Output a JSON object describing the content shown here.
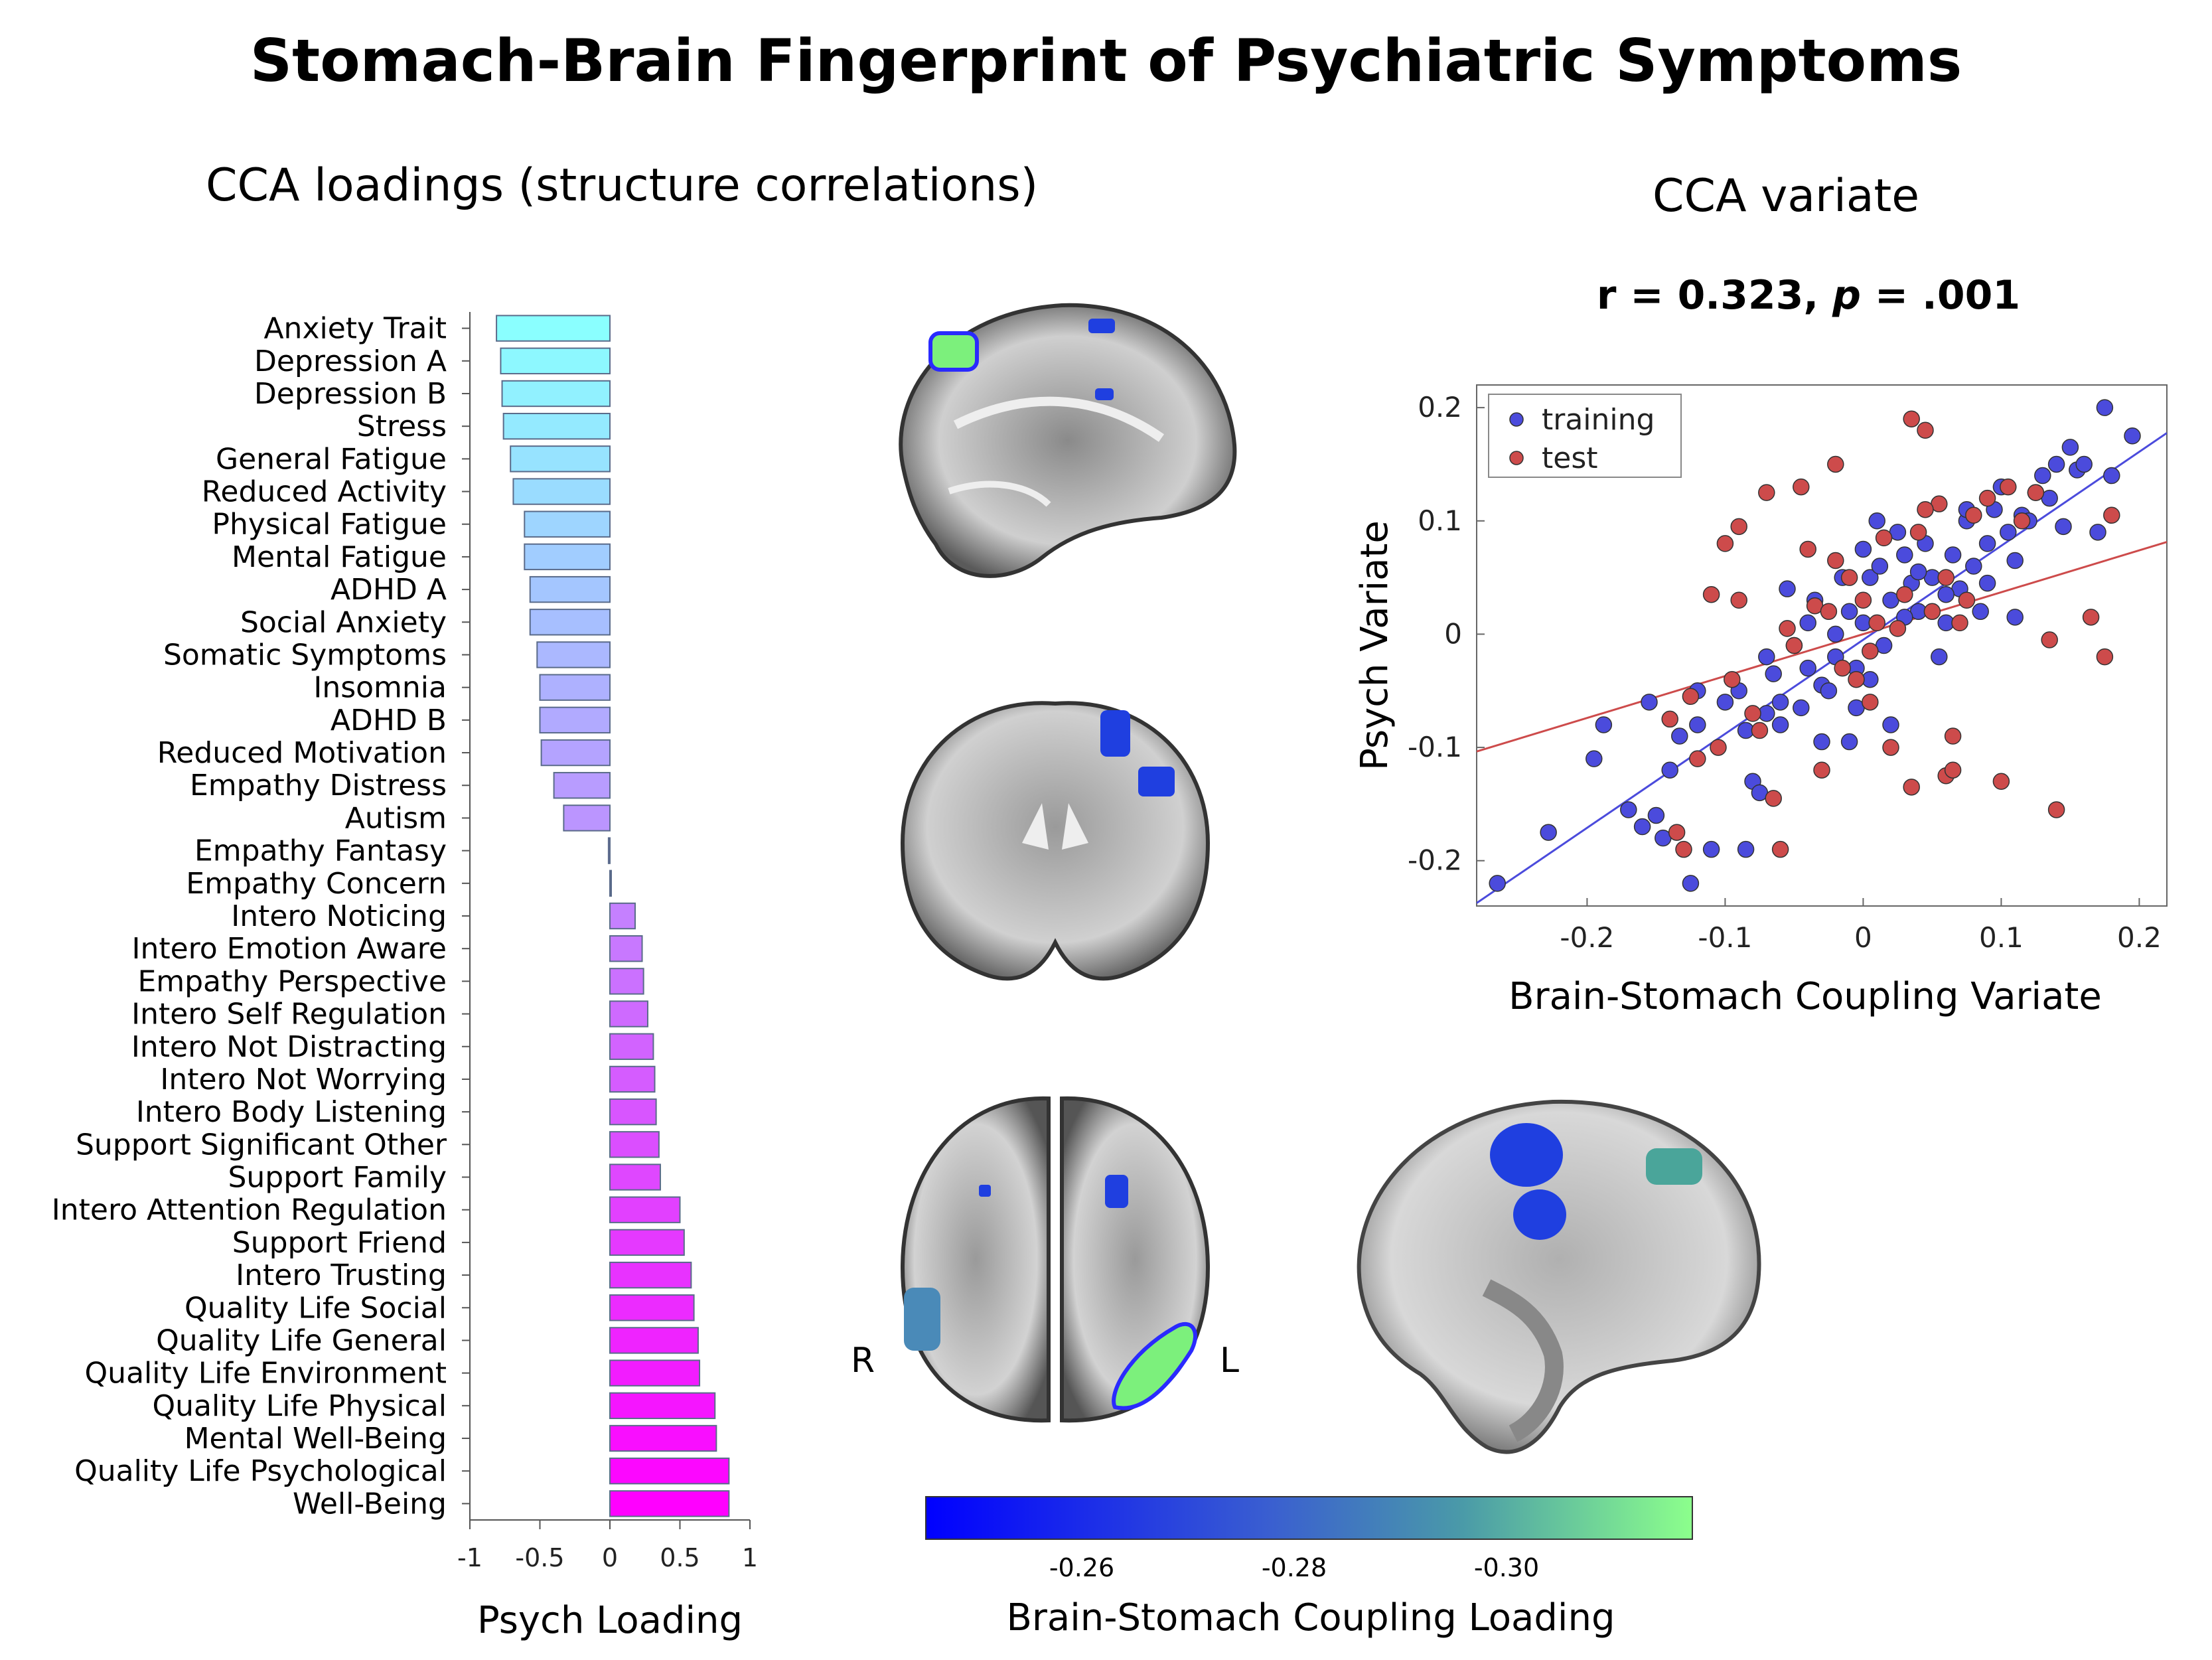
{
  "title": "Stomach-Brain Fingerprint of Psychiatric Symptoms",
  "bar_panel_title": "CCA loadings (structure correlations)",
  "scatter_panel_title": "CCA variate",
  "scatter_stats": {
    "r_text": "r = 0.323, ",
    "p_label": "p",
    "p_text": " = .001"
  },
  "brain_labels": {
    "right": "R",
    "left": "L"
  },
  "colorbar": {
    "label": "Brain-Stomach Coupling Loading",
    "ticks": [
      "-0.26",
      "-0.28",
      "-0.30"
    ],
    "color_low": "#0000ff",
    "color_high": "#8cff8c"
  },
  "chart_data": [
    {
      "type": "bar",
      "orientation": "horizontal",
      "xlabel": "Psych Loading",
      "xlim": [
        -1,
        1
      ],
      "xticks": [
        -1,
        -0.5,
        0,
        0.5,
        1
      ],
      "xtick_labels": [
        "-1",
        "-0.5",
        "0",
        "0.5",
        "1"
      ],
      "color_start": "#8affff",
      "color_end": "#ff00ff",
      "categories": [
        "Anxiety Trait",
        "Depression A",
        "Depression B",
        "Stress",
        "General Fatigue",
        "Reduced Activity",
        "Physical Fatigue",
        "Mental Fatigue",
        "ADHD A",
        "Social Anxiety",
        "Somatic Symptoms",
        "Insomnia",
        "ADHD B",
        "Reduced Motivation",
        "Empathy Distress",
        "Autism",
        "Empathy Fantasy",
        "Empathy Concern",
        "Intero Noticing",
        "Intero Emotion Aware",
        "Empathy Perspective",
        "Intero Self Regulation",
        "Intero Not Distracting",
        "Intero Not Worrying",
        "Intero Body Listening",
        "Support Significant Other",
        "Support Family",
        "Intero Attention Regulation",
        "Support Friend",
        "Intero Trusting",
        "Quality Life Social",
        "Quality Life General",
        "Quality Life Environment",
        "Quality Life Physical",
        "Mental Well-Being",
        "Quality Life Psychological",
        "Well-Being"
      ],
      "values": [
        -0.81,
        -0.78,
        -0.77,
        -0.76,
        -0.71,
        -0.69,
        -0.61,
        -0.61,
        -0.57,
        -0.57,
        -0.52,
        -0.5,
        -0.5,
        -0.49,
        -0.4,
        -0.33,
        -0.01,
        0.0,
        0.18,
        0.23,
        0.24,
        0.27,
        0.31,
        0.32,
        0.33,
        0.35,
        0.36,
        0.5,
        0.53,
        0.58,
        0.6,
        0.63,
        0.64,
        0.75,
        0.76,
        0.85,
        0.85
      ]
    },
    {
      "type": "scatter",
      "xlabel": "Brain-Stomach Coupling Variate",
      "ylabel": "Psych Variate",
      "xlim": [
        -0.28,
        0.22
      ],
      "ylim": [
        -0.24,
        0.22
      ],
      "xticks": [
        -0.2,
        -0.1,
        0,
        0.1,
        0.2
      ],
      "xtick_labels": [
        "-0.2",
        "-0.1",
        "0",
        "0.1",
        "0.2"
      ],
      "yticks": [
        -0.2,
        -0.1,
        0,
        0.1,
        0.2
      ],
      "ytick_labels": [
        "-0.2",
        "-0.1",
        "0",
        "0.1",
        "0.2"
      ],
      "legend_position": "top-left",
      "series": [
        {
          "name": "training",
          "color": "#4b4bdc",
          "fit": {
            "slope": 0.83,
            "intercept": -0.005
          },
          "points": [
            [
              -0.265,
              -0.22
            ],
            [
              -0.228,
              -0.175
            ],
            [
              -0.195,
              -0.11
            ],
            [
              -0.188,
              -0.08
            ],
            [
              -0.17,
              -0.155
            ],
            [
              -0.16,
              -0.17
            ],
            [
              -0.155,
              -0.06
            ],
            [
              -0.15,
              -0.16
            ],
            [
              -0.14,
              -0.12
            ],
            [
              -0.133,
              -0.09
            ],
            [
              -0.125,
              -0.22
            ],
            [
              -0.12,
              -0.08
            ],
            [
              -0.11,
              -0.19
            ],
            [
              -0.1,
              -0.06
            ],
            [
              -0.09,
              -0.05
            ],
            [
              -0.085,
              -0.085
            ],
            [
              -0.08,
              -0.13
            ],
            [
              -0.075,
              -0.14
            ],
            [
              -0.07,
              -0.07
            ],
            [
              -0.07,
              -0.02
            ],
            [
              -0.065,
              -0.035
            ],
            [
              -0.06,
              -0.06
            ],
            [
              -0.055,
              0.04
            ],
            [
              -0.05,
              -0.01
            ],
            [
              -0.045,
              -0.065
            ],
            [
              -0.04,
              0.01
            ],
            [
              -0.04,
              -0.03
            ],
            [
              -0.035,
              0.03
            ],
            [
              -0.03,
              -0.095
            ],
            [
              -0.03,
              -0.045
            ],
            [
              -0.025,
              -0.05
            ],
            [
              -0.02,
              0.0
            ],
            [
              -0.02,
              -0.02
            ],
            [
              -0.015,
              0.05
            ],
            [
              -0.01,
              0.02
            ],
            [
              -0.01,
              -0.095
            ],
            [
              -0.005,
              -0.03
            ],
            [
              0.0,
              0.01
            ],
            [
              0.005,
              -0.04
            ],
            [
              0.005,
              0.05
            ],
            [
              0.01,
              0.1
            ],
            [
              0.012,
              0.06
            ],
            [
              0.015,
              -0.01
            ],
            [
              0.02,
              0.03
            ],
            [
              0.025,
              0.09
            ],
            [
              0.03,
              0.07
            ],
            [
              0.035,
              0.045
            ],
            [
              0.04,
              0.02
            ],
            [
              0.045,
              0.08
            ],
            [
              0.05,
              0.05
            ],
            [
              0.055,
              -0.02
            ],
            [
              0.06,
              0.01
            ],
            [
              0.065,
              0.07
            ],
            [
              0.07,
              0.04
            ],
            [
              0.075,
              0.1
            ],
            [
              0.08,
              0.06
            ],
            [
              0.085,
              0.02
            ],
            [
              0.09,
              0.08
            ],
            [
              0.095,
              0.11
            ],
            [
              0.1,
              0.13
            ],
            [
              0.105,
              0.09
            ],
            [
              0.11,
              0.065
            ],
            [
              0.115,
              0.105
            ],
            [
              0.12,
              0.1
            ],
            [
              0.125,
              0.125
            ],
            [
              0.13,
              0.14
            ],
            [
              0.135,
              0.12
            ],
            [
              0.14,
              0.15
            ],
            [
              0.145,
              0.095
            ],
            [
              0.15,
              0.165
            ],
            [
              0.155,
              0.145
            ],
            [
              0.16,
              0.15
            ],
            [
              0.17,
              0.09
            ],
            [
              0.175,
              0.2
            ],
            [
              0.18,
              0.14
            ],
            [
              0.195,
              0.175
            ],
            [
              -0.145,
              -0.18
            ],
            [
              -0.12,
              -0.05
            ],
            [
              0.02,
              -0.08
            ],
            [
              0.06,
              0.035
            ],
            [
              0.09,
              0.045
            ],
            [
              -0.06,
              -0.08
            ],
            [
              0.11,
              0.015
            ],
            [
              0.0,
              0.075
            ],
            [
              0.03,
              0.015
            ],
            [
              -0.005,
              -0.065
            ],
            [
              -0.085,
              -0.19
            ],
            [
              0.04,
              0.055
            ],
            [
              0.075,
              0.11
            ]
          ]
        },
        {
          "name": "test",
          "color": "#cd4b4b",
          "fit": {
            "slope": 0.37,
            "intercept": 0.0
          },
          "points": [
            [
              -0.14,
              -0.075
            ],
            [
              -0.135,
              -0.175
            ],
            [
              -0.13,
              -0.19
            ],
            [
              -0.125,
              -0.055
            ],
            [
              -0.12,
              -0.11
            ],
            [
              -0.11,
              0.035
            ],
            [
              -0.105,
              -0.1
            ],
            [
              -0.1,
              0.08
            ],
            [
              -0.095,
              -0.04
            ],
            [
              -0.09,
              0.03
            ],
            [
              -0.08,
              -0.07
            ],
            [
              -0.075,
              -0.085
            ],
            [
              -0.07,
              0.125
            ],
            [
              -0.065,
              -0.145
            ],
            [
              -0.06,
              -0.19
            ],
            [
              -0.055,
              0.005
            ],
            [
              -0.05,
              -0.01
            ],
            [
              -0.045,
              0.13
            ],
            [
              -0.04,
              0.075
            ],
            [
              -0.035,
              0.025
            ],
            [
              -0.03,
              -0.12
            ],
            [
              -0.025,
              0.02
            ],
            [
              -0.02,
              0.15
            ],
            [
              -0.015,
              -0.03
            ],
            [
              -0.01,
              0.05
            ],
            [
              -0.005,
              -0.04
            ],
            [
              0.0,
              0.03
            ],
            [
              0.005,
              -0.06
            ],
            [
              0.01,
              0.01
            ],
            [
              0.015,
              0.085
            ],
            [
              0.02,
              -0.1
            ],
            [
              0.025,
              0.005
            ],
            [
              0.03,
              0.035
            ],
            [
              0.035,
              0.19
            ],
            [
              0.04,
              0.09
            ],
            [
              0.045,
              0.18
            ],
            [
              0.05,
              0.02
            ],
            [
              0.055,
              0.115
            ],
            [
              0.06,
              0.05
            ],
            [
              0.065,
              -0.09
            ],
            [
              0.07,
              0.01
            ],
            [
              0.075,
              0.03
            ],
            [
              0.08,
              0.105
            ],
            [
              0.09,
              0.12
            ],
            [
              0.1,
              -0.13
            ],
            [
              0.105,
              0.13
            ],
            [
              0.115,
              0.1
            ],
            [
              0.125,
              0.125
            ],
            [
              0.135,
              -0.005
            ],
            [
              0.14,
              -0.155
            ],
            [
              0.165,
              0.015
            ],
            [
              0.175,
              -0.02
            ],
            [
              0.18,
              0.105
            ],
            [
              0.035,
              -0.135
            ],
            [
              0.005,
              -0.015
            ],
            [
              -0.09,
              0.095
            ],
            [
              0.06,
              -0.125
            ],
            [
              0.045,
              0.11
            ],
            [
              0.065,
              -0.12
            ],
            [
              -0.02,
              0.065
            ]
          ]
        }
      ]
    }
  ]
}
